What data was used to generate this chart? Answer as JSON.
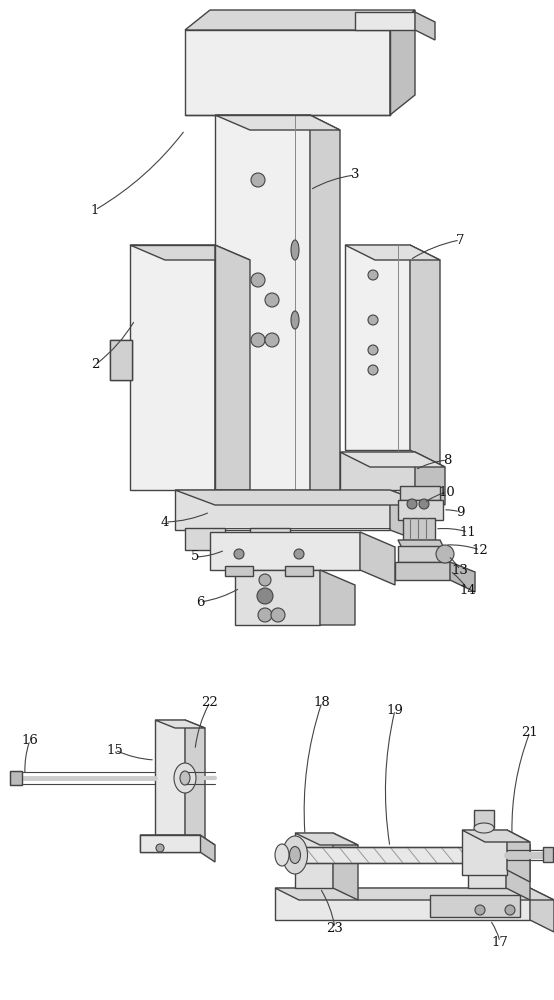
{
  "bg_color": "#ffffff",
  "lc": "#444444",
  "fc_light": "#f0f0f0",
  "fc_mid": "#d8d8d8",
  "fc_dark": "#b8b8b8",
  "fc_side": "#c8c8c8"
}
